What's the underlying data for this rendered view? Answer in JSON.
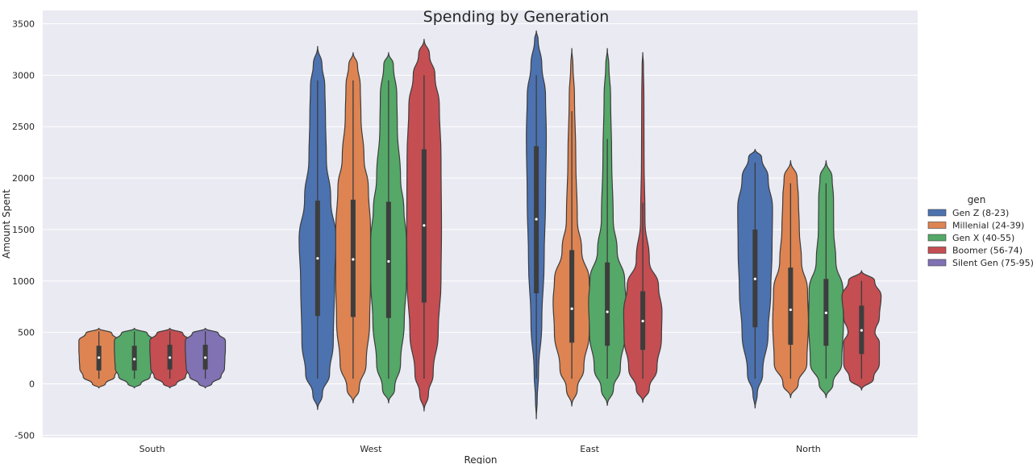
{
  "chart_data": {
    "type": "violin",
    "title": "Spending by Generation",
    "xlabel": "Region",
    "ylabel": "Amount Spent",
    "ylim": [
      -500,
      3500
    ],
    "yticks": [
      "-500",
      "0",
      "500",
      "1000",
      "1500",
      "2000",
      "2500",
      "3000",
      "3500"
    ],
    "categories": [
      "South",
      "West",
      "East",
      "North"
    ],
    "grid": true,
    "legend": {
      "title": "gen",
      "placement": "right",
      "entries": [
        "Gen Z (8-23)",
        "Millenial (24-39)",
        "Gen X (40-55)",
        "Boomer (56-74)",
        "Silent Gen (75-95)"
      ]
    },
    "colors": {
      "background": "#eaeaf2",
      "grid": "#ffffff",
      "outline": "#3d3d3d",
      "Gen Z (8-23)": "#4c72b0",
      "Millenial (24-39)": "#dd8452",
      "Gen X (40-55)": "#55a868",
      "Boomer (56-74)": "#c44e52",
      "Silent Gen (75-95)": "#8172b3"
    },
    "violins": [
      {
        "category": "South",
        "series": "Millenial (24-39)",
        "range": [
          -40,
          540
        ],
        "whisker": [
          50,
          510
        ],
        "q1": 130,
        "median": 255,
        "q3": 370,
        "profile": [
          [
            -40,
            0
          ],
          [
            0,
            0.3
          ],
          [
            70,
            0.72
          ],
          [
            150,
            0.88
          ],
          [
            250,
            0.9
          ],
          [
            330,
            0.92
          ],
          [
            420,
            0.92
          ],
          [
            490,
            0.6
          ],
          [
            540,
            0
          ]
        ]
      },
      {
        "category": "South",
        "series": "Gen X (40-55)",
        "range": [
          -40,
          540
        ],
        "whisker": [
          50,
          510
        ],
        "q1": 130,
        "median": 240,
        "q3": 370,
        "profile": [
          [
            -40,
            0
          ],
          [
            0,
            0.3
          ],
          [
            70,
            0.72
          ],
          [
            150,
            0.88
          ],
          [
            250,
            0.9
          ],
          [
            330,
            0.92
          ],
          [
            420,
            0.92
          ],
          [
            490,
            0.6
          ],
          [
            540,
            0
          ]
        ]
      },
      {
        "category": "South",
        "series": "Boomer (56-74)",
        "range": [
          -40,
          540
        ],
        "whisker": [
          50,
          510
        ],
        "q1": 140,
        "median": 255,
        "q3": 380,
        "profile": [
          [
            -40,
            0
          ],
          [
            0,
            0.3
          ],
          [
            70,
            0.72
          ],
          [
            150,
            0.88
          ],
          [
            250,
            0.9
          ],
          [
            330,
            0.92
          ],
          [
            420,
            0.92
          ],
          [
            490,
            0.6
          ],
          [
            540,
            0
          ]
        ]
      },
      {
        "category": "South",
        "series": "Silent Gen (75-95)",
        "range": [
          -40,
          540
        ],
        "whisker": [
          50,
          510
        ],
        "q1": 140,
        "median": 255,
        "q3": 380,
        "profile": [
          [
            -40,
            0
          ],
          [
            0,
            0.3
          ],
          [
            70,
            0.72
          ],
          [
            150,
            0.88
          ],
          [
            250,
            0.9
          ],
          [
            330,
            0.92
          ],
          [
            420,
            0.92
          ],
          [
            490,
            0.6
          ],
          [
            540,
            0
          ]
        ]
      },
      {
        "category": "West",
        "series": "Gen Z (8-23)",
        "range": [
          -250,
          3280
        ],
        "whisker": [
          50,
          2950
        ],
        "q1": 660,
        "median": 1220,
        "q3": 1780,
        "profile": [
          [
            -250,
            0
          ],
          [
            -100,
            0.22
          ],
          [
            100,
            0.55
          ],
          [
            400,
            0.72
          ],
          [
            1000,
            0.78
          ],
          [
            1400,
            0.85
          ],
          [
            1800,
            0.6
          ],
          [
            2200,
            0.4
          ],
          [
            2600,
            0.36
          ],
          [
            2900,
            0.33
          ],
          [
            3100,
            0.2
          ],
          [
            3280,
            0
          ]
        ]
      },
      {
        "category": "West",
        "series": "Millenial (24-39)",
        "range": [
          -185,
          3220
        ],
        "whisker": [
          50,
          2950
        ],
        "q1": 650,
        "median": 1210,
        "q3": 1790,
        "profile": [
          [
            -185,
            0
          ],
          [
            -50,
            0.28
          ],
          [
            200,
            0.6
          ],
          [
            600,
            0.76
          ],
          [
            1000,
            0.8
          ],
          [
            1500,
            0.8
          ],
          [
            1900,
            0.7
          ],
          [
            2200,
            0.5
          ],
          [
            2600,
            0.36
          ],
          [
            2900,
            0.33
          ],
          [
            3100,
            0.2
          ],
          [
            3220,
            0
          ]
        ]
      },
      {
        "category": "West",
        "series": "Gen X (40-55)",
        "range": [
          -185,
          3220
        ],
        "whisker": [
          50,
          2950
        ],
        "q1": 640,
        "median": 1190,
        "q3": 1770,
        "profile": [
          [
            -185,
            0
          ],
          [
            -50,
            0.28
          ],
          [
            200,
            0.55
          ],
          [
            600,
            0.72
          ],
          [
            1000,
            0.82
          ],
          [
            1400,
            0.82
          ],
          [
            1700,
            0.7
          ],
          [
            2000,
            0.55
          ],
          [
            2500,
            0.4
          ],
          [
            2800,
            0.38
          ],
          [
            3100,
            0.22
          ],
          [
            3220,
            0
          ]
        ]
      },
      {
        "category": "West",
        "series": "Boomer (56-74)",
        "range": [
          -265,
          3350
        ],
        "whisker": [
          50,
          3000
        ],
        "q1": 790,
        "median": 1540,
        "q3": 2280,
        "profile": [
          [
            -265,
            0
          ],
          [
            -100,
            0.2
          ],
          [
            100,
            0.42
          ],
          [
            500,
            0.65
          ],
          [
            1000,
            0.78
          ],
          [
            1500,
            0.8
          ],
          [
            2200,
            0.78
          ],
          [
            2700,
            0.7
          ],
          [
            3000,
            0.5
          ],
          [
            3200,
            0.25
          ],
          [
            3350,
            0
          ]
        ]
      },
      {
        "category": "East",
        "series": "Gen Z (8-23)",
        "range": [
          -340,
          3430
        ],
        "whisker": [
          50,
          3000
        ],
        "q1": 880,
        "median": 1600,
        "q3": 2310,
        "profile": [
          [
            -340,
            0
          ],
          [
            -150,
            0.04
          ],
          [
            100,
            0.1
          ],
          [
            600,
            0.25
          ],
          [
            1200,
            0.36
          ],
          [
            1800,
            0.42
          ],
          [
            2400,
            0.46
          ],
          [
            2800,
            0.42
          ],
          [
            3100,
            0.25
          ],
          [
            3350,
            0.08
          ],
          [
            3430,
            0
          ]
        ]
      },
      {
        "category": "East",
        "series": "Millenial (24-39)",
        "range": [
          -215,
          3260
        ],
        "whisker": [
          50,
          2650
        ],
        "q1": 400,
        "median": 730,
        "q3": 1300,
        "profile": [
          [
            -215,
            0
          ],
          [
            -50,
            0.25
          ],
          [
            150,
            0.55
          ],
          [
            500,
            0.8
          ],
          [
            800,
            0.86
          ],
          [
            1000,
            0.8
          ],
          [
            1300,
            0.45
          ],
          [
            1600,
            0.25
          ],
          [
            2200,
            0.18
          ],
          [
            2800,
            0.12
          ],
          [
            3100,
            0.05
          ],
          [
            3260,
            0
          ]
        ]
      },
      {
        "category": "East",
        "series": "Gen X (40-55)",
        "range": [
          -210,
          3260
        ],
        "whisker": [
          50,
          2380
        ],
        "q1": 370,
        "median": 700,
        "q3": 1180,
        "profile": [
          [
            -210,
            0
          ],
          [
            -50,
            0.28
          ],
          [
            150,
            0.6
          ],
          [
            500,
            0.82
          ],
          [
            800,
            0.86
          ],
          [
            1000,
            0.8
          ],
          [
            1300,
            0.45
          ],
          [
            1600,
            0.27
          ],
          [
            2200,
            0.2
          ],
          [
            2800,
            0.15
          ],
          [
            3100,
            0.07
          ],
          [
            3260,
            0
          ]
        ]
      },
      {
        "category": "East",
        "series": "Boomer (56-74)",
        "range": [
          -180,
          3220
        ],
        "whisker": [
          50,
          1760
        ],
        "q1": 330,
        "median": 610,
        "q3": 900,
        "profile": [
          [
            -180,
            0
          ],
          [
            -50,
            0.3
          ],
          [
            150,
            0.65
          ],
          [
            450,
            0.86
          ],
          [
            700,
            0.88
          ],
          [
            950,
            0.72
          ],
          [
            1200,
            0.3
          ],
          [
            1600,
            0.1
          ],
          [
            2200,
            0.06
          ],
          [
            2800,
            0.05
          ],
          [
            3100,
            0.03
          ],
          [
            3220,
            0
          ]
        ]
      },
      {
        "category": "North",
        "series": "Gen Z (8-23)",
        "range": [
          -235,
          2280
        ],
        "whisker": [
          50,
          2150
        ],
        "q1": 550,
        "median": 1020,
        "q3": 1500,
        "profile": [
          [
            -235,
            0
          ],
          [
            -100,
            0.1
          ],
          [
            100,
            0.35
          ],
          [
            500,
            0.6
          ],
          [
            900,
            0.72
          ],
          [
            1300,
            0.78
          ],
          [
            1700,
            0.8
          ],
          [
            2000,
            0.6
          ],
          [
            2200,
            0.3
          ],
          [
            2280,
            0
          ]
        ]
      },
      {
        "category": "North",
        "series": "Millenial (24-39)",
        "range": [
          -135,
          2170
        ],
        "whisker": [
          50,
          1950
        ],
        "q1": 380,
        "median": 720,
        "q3": 1130,
        "profile": [
          [
            -135,
            0
          ],
          [
            0,
            0.35
          ],
          [
            200,
            0.75
          ],
          [
            600,
            0.82
          ],
          [
            900,
            0.78
          ],
          [
            1200,
            0.5
          ],
          [
            1500,
            0.4
          ],
          [
            1800,
            0.36
          ],
          [
            2000,
            0.3
          ],
          [
            2170,
            0
          ]
        ]
      },
      {
        "category": "North",
        "series": "Gen X (40-55)",
        "range": [
          -135,
          2170
        ],
        "whisker": [
          50,
          1950
        ],
        "q1": 370,
        "median": 690,
        "q3": 1020,
        "profile": [
          [
            -135,
            0
          ],
          [
            0,
            0.32
          ],
          [
            200,
            0.72
          ],
          [
            600,
            0.8
          ],
          [
            900,
            0.78
          ],
          [
            1200,
            0.45
          ],
          [
            1500,
            0.35
          ],
          [
            1800,
            0.34
          ],
          [
            2000,
            0.28
          ],
          [
            2170,
            0
          ]
        ]
      },
      {
        "category": "North",
        "series": "Boomer (56-74)",
        "range": [
          -60,
          1100
        ],
        "whisker": [
          50,
          1000
        ],
        "q1": 290,
        "median": 520,
        "q3": 760,
        "profile": [
          [
            -60,
            0
          ],
          [
            50,
            0.55
          ],
          [
            200,
            0.82
          ],
          [
            400,
            0.82
          ],
          [
            500,
            0.62
          ],
          [
            650,
            0.82
          ],
          [
            850,
            0.9
          ],
          [
            1000,
            0.6
          ],
          [
            1100,
            0
          ]
        ]
      }
    ]
  }
}
